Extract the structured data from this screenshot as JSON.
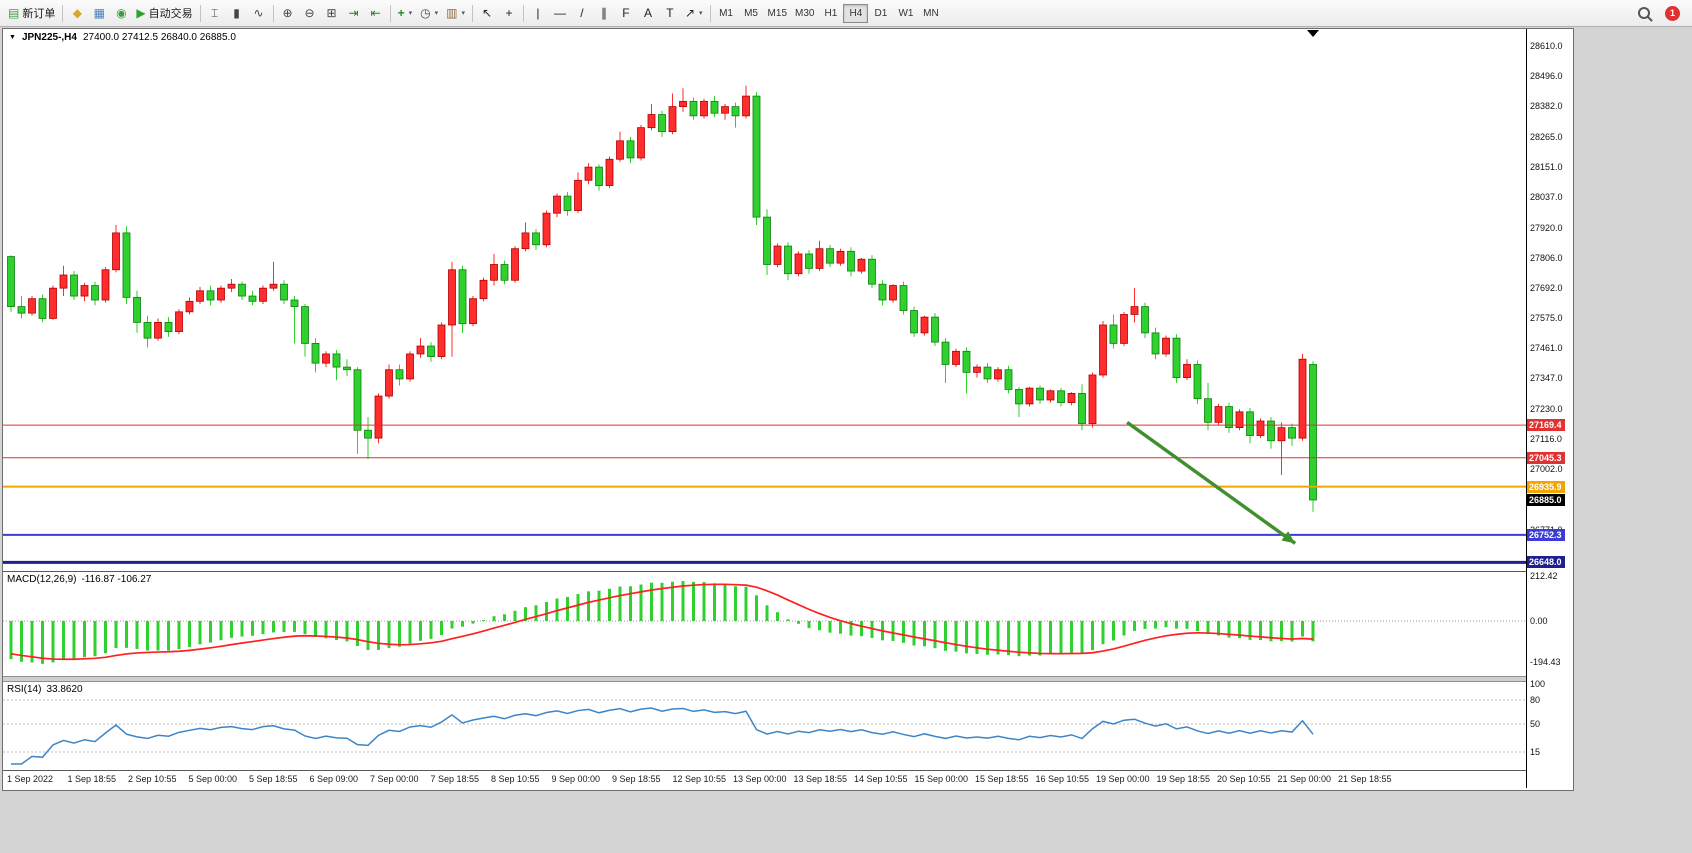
{
  "icons": {
    "caret": "▾",
    "dropdown": "▼"
  },
  "toolbar": {
    "buttons": [
      {
        "type": "button",
        "name": "new-order",
        "glyph": "▤",
        "color": "#3f9c3f",
        "label": "新订单"
      },
      {
        "type": "sep"
      },
      {
        "type": "button",
        "name": "market-watch",
        "glyph": "◆",
        "color": "#d9a62e"
      },
      {
        "type": "button",
        "name": "data-window",
        "glyph": "▦",
        "color": "#4a7ebb"
      },
      {
        "type": "button",
        "name": "navigator",
        "glyph": "◉",
        "color": "#3f9c3f"
      },
      {
        "type": "button",
        "name": "auto-trading",
        "glyph": "▶",
        "color": "#2da52d",
        "label": "自动交易"
      },
      {
        "type": "sep"
      },
      {
        "type": "button",
        "name": "bar-chart",
        "glyph": "⌶",
        "color": "#444444"
      },
      {
        "type": "button",
        "name": "candlestick-chart",
        "glyph": "▮",
        "color": "#444444"
      },
      {
        "type": "button",
        "name": "line-chart",
        "glyph": "∿",
        "color": "#444444"
      },
      {
        "type": "sep"
      },
      {
        "type": "button",
        "name": "zoom-in",
        "glyph": "⊕",
        "color": "#444444"
      },
      {
        "type": "button",
        "name": "zoom-out",
        "glyph": "⊖",
        "color": "#444444"
      },
      {
        "type": "button",
        "name": "tile-windows",
        "glyph": "⊞",
        "color": "#444444"
      },
      {
        "type": "button",
        "name": "auto-scroll",
        "glyph": "⇥",
        "color": "#2a7a2a"
      },
      {
        "type": "button",
        "name": "chart-shift",
        "glyph": "⇤",
        "color": "#2a7a2a"
      },
      {
        "type": "sep"
      },
      {
        "type": "button",
        "name": "indicators",
        "glyph": "+",
        "color": "#1f8f1f",
        "weight": "bold",
        "caret": true
      },
      {
        "type": "button",
        "name": "periods",
        "glyph": "◷",
        "color": "#444444",
        "caret": true
      },
      {
        "type": "button",
        "name": "templates",
        "glyph": "▥",
        "color": "#8a6b3a",
        "caret": true
      },
      {
        "type": "sep"
      },
      {
        "type": "button",
        "name": "cursor",
        "glyph": "↖",
        "color": "#222222"
      },
      {
        "type": "button",
        "name": "crosshair",
        "glyph": "+",
        "color": "#222222"
      },
      {
        "type": "sep"
      },
      {
        "type": "button",
        "name": "vertical-line",
        "glyph": "|",
        "color": "#222222"
      },
      {
        "type": "button",
        "name": "horizontal-line",
        "glyph": "—",
        "color": "#222222"
      },
      {
        "type": "button",
        "name": "trendline",
        "glyph": "/",
        "color": "#222222"
      },
      {
        "type": "button",
        "name": "equidistant-channel",
        "glyph": "∥",
        "color": "#222222"
      },
      {
        "type": "button",
        "name": "fibonacci",
        "glyph": "F",
        "color": "#222222"
      },
      {
        "type": "button",
        "name": "text",
        "glyph": "A",
        "color": "#222222"
      },
      {
        "type": "button",
        "name": "text-label",
        "glyph": "T",
        "color": "#222222"
      },
      {
        "type": "button",
        "name": "arrows",
        "glyph": "↗",
        "color": "#222222",
        "caret": true
      },
      {
        "type": "sep"
      }
    ],
    "timeframes": [
      "M1",
      "M5",
      "M15",
      "M30",
      "H1",
      "H4",
      "D1",
      "W1",
      "MN"
    ],
    "active_timeframe": "H4",
    "notification_count": "1"
  },
  "chart": {
    "symbol_label": "JPN225-,H4",
    "ohlc_label": "27400.0 27412.5 26840.0 26885.0",
    "price_axis": [
      "28610.0",
      "28496.0",
      "28382.0",
      "28265.0",
      "28151.0",
      "28037.0",
      "27920.0",
      "27806.0",
      "27692.0",
      "27575.0",
      "27461.0",
      "27347.0",
      "27230.0",
      "27116.0",
      "27002.0",
      "26771.0"
    ],
    "current_price": {
      "label": "26885.0",
      "price": 26885.0,
      "bg": "#000000"
    },
    "time_axis": [
      "1 Sep 2022",
      "1 Sep 18:55",
      "2 Sep 10:55",
      "5 Sep 00:00",
      "5 Sep 18:55",
      "6 Sep 09:00",
      "7 Sep 00:00",
      "7 Sep 18:55",
      "8 Sep 10:55",
      "9 Sep 00:00",
      "9 Sep 18:55",
      "12 Sep 10:55",
      "13 Sep 00:00",
      "13 Sep 18:55",
      "14 Sep 10:55",
      "15 Sep 00:00",
      "15 Sep 18:55",
      "16 Sep 10:55",
      "19 Sep 00:00",
      "19 Sep 18:55",
      "20 Sep 10:55",
      "21 Sep 00:00",
      "21 Sep 18:55"
    ]
  },
  "macd": {
    "name_label": "MACD(12,26,9)",
    "values_label": "-116.87 -106.27",
    "axis": [
      "212.42",
      "0.00",
      "-194.43"
    ],
    "axis_values": [
      212.42,
      0,
      -194.43
    ]
  },
  "rsi": {
    "name_label": "RSI(14)",
    "value_label": "33.8620",
    "axis": [
      "100",
      "80",
      "50",
      "15"
    ],
    "axis_values": [
      100,
      80,
      50,
      15
    ],
    "levels": [
      80,
      50,
      15
    ]
  },
  "colors": {
    "bull": "#ff2d2d",
    "bull_edge": "#b30000",
    "bear": "#2ed12e",
    "bear_edge": "#0f7e0f",
    "macd_hist": "#2ed12e",
    "macd_signal": "#ff2020",
    "rsi_line": "#3e85c6",
    "arrow": "#3f8f2f",
    "level_red": "#e23131",
    "level_orange": "#f0a500",
    "level_blue": "#3b3bd6",
    "level_navy": "#1f1f8f"
  },
  "chart_data": {
    "type": "candlestick",
    "symbol": "JPN225-",
    "timeframe": "H4",
    "ohlc_current": {
      "open": 27400.0,
      "high": 27412.5,
      "low": 26840.0,
      "close": 26885.0
    },
    "price_view_range": [
      26615,
      28675
    ],
    "candles": [
      [
        27810,
        27815,
        27600,
        27620
      ],
      [
        27620,
        27660,
        27575,
        27595
      ],
      [
        27595,
        27660,
        27585,
        27650
      ],
      [
        27650,
        27665,
        27560,
        27575
      ],
      [
        27575,
        27700,
        27570,
        27690
      ],
      [
        27690,
        27775,
        27660,
        27740
      ],
      [
        27740,
        27755,
        27645,
        27660
      ],
      [
        27660,
        27710,
        27640,
        27700
      ],
      [
        27700,
        27715,
        27625,
        27645
      ],
      [
        27645,
        27770,
        27635,
        27760
      ],
      [
        27760,
        27930,
        27750,
        27900
      ],
      [
        27900,
        27925,
        27630,
        27655
      ],
      [
        27655,
        27680,
        27520,
        27560
      ],
      [
        27560,
        27585,
        27465,
        27500
      ],
      [
        27500,
        27575,
        27490,
        27560
      ],
      [
        27560,
        27580,
        27505,
        27525
      ],
      [
        27525,
        27610,
        27515,
        27600
      ],
      [
        27600,
        27655,
        27590,
        27640
      ],
      [
        27640,
        27695,
        27630,
        27680
      ],
      [
        27680,
        27700,
        27625,
        27645
      ],
      [
        27645,
        27700,
        27635,
        27690
      ],
      [
        27690,
        27725,
        27675,
        27705
      ],
      [
        27705,
        27715,
        27645,
        27660
      ],
      [
        27660,
        27680,
        27625,
        27640
      ],
      [
        27640,
        27700,
        27630,
        27690
      ],
      [
        27690,
        27790,
        27680,
        27705
      ],
      [
        27705,
        27720,
        27630,
        27645
      ],
      [
        27645,
        27660,
        27480,
        27620
      ],
      [
        27620,
        27630,
        27430,
        27480
      ],
      [
        27480,
        27500,
        27370,
        27405
      ],
      [
        27405,
        27450,
        27390,
        27440
      ],
      [
        27440,
        27455,
        27340,
        27390
      ],
      [
        27390,
        27420,
        27355,
        27380
      ],
      [
        27380,
        27390,
        27060,
        27150
      ],
      [
        27150,
        27200,
        27040,
        27120
      ],
      [
        27120,
        27290,
        27100,
        27280
      ],
      [
        27280,
        27400,
        27270,
        27380
      ],
      [
        27380,
        27400,
        27320,
        27345
      ],
      [
        27345,
        27450,
        27335,
        27440
      ],
      [
        27440,
        27500,
        27425,
        27470
      ],
      [
        27470,
        27485,
        27410,
        27430
      ],
      [
        27430,
        27560,
        27420,
        27550
      ],
      [
        27550,
        27790,
        27430,
        27760
      ],
      [
        27760,
        27775,
        27520,
        27555
      ],
      [
        27555,
        27660,
        27545,
        27650
      ],
      [
        27650,
        27730,
        27640,
        27720
      ],
      [
        27720,
        27820,
        27700,
        27780
      ],
      [
        27780,
        27795,
        27705,
        27720
      ],
      [
        27720,
        27850,
        27710,
        27840
      ],
      [
        27840,
        27940,
        27830,
        27900
      ],
      [
        27900,
        27915,
        27835,
        27855
      ],
      [
        27855,
        27985,
        27845,
        27975
      ],
      [
        27975,
        28050,
        27960,
        28040
      ],
      [
        28040,
        28055,
        27965,
        27985
      ],
      [
        27985,
        28130,
        27975,
        28100
      ],
      [
        28100,
        28165,
        28085,
        28150
      ],
      [
        28150,
        28160,
        28060,
        28080
      ],
      [
        28080,
        28190,
        28070,
        28180
      ],
      [
        28180,
        28285,
        28170,
        28250
      ],
      [
        28250,
        28265,
        28165,
        28185
      ],
      [
        28185,
        28310,
        28175,
        28300
      ],
      [
        28300,
        28390,
        28290,
        28350
      ],
      [
        28350,
        28365,
        28265,
        28285
      ],
      [
        28285,
        28430,
        28275,
        28380
      ],
      [
        28380,
        28450,
        28360,
        28400
      ],
      [
        28400,
        28415,
        28330,
        28345
      ],
      [
        28345,
        28410,
        28335,
        28400
      ],
      [
        28400,
        28420,
        28340,
        28355
      ],
      [
        28355,
        28390,
        28330,
        28380
      ],
      [
        28380,
        28395,
        28300,
        28345
      ],
      [
        28345,
        28460,
        28335,
        28420
      ],
      [
        28420,
        28435,
        27930,
        27960
      ],
      [
        27960,
        27990,
        27740,
        27780
      ],
      [
        27780,
        27860,
        27770,
        27850
      ],
      [
        27850,
        27865,
        27720,
        27745
      ],
      [
        27745,
        27830,
        27735,
        27820
      ],
      [
        27820,
        27835,
        27745,
        27765
      ],
      [
        27765,
        27870,
        27755,
        27840
      ],
      [
        27840,
        27855,
        27770,
        27785
      ],
      [
        27785,
        27840,
        27775,
        27830
      ],
      [
        27830,
        27845,
        27735,
        27755
      ],
      [
        27755,
        27805,
        27745,
        27800
      ],
      [
        27800,
        27815,
        27690,
        27705
      ],
      [
        27705,
        27720,
        27625,
        27645
      ],
      [
        27645,
        27705,
        27635,
        27700
      ],
      [
        27700,
        27715,
        27590,
        27605
      ],
      [
        27605,
        27620,
        27505,
        27520
      ],
      [
        27520,
        27585,
        27510,
        27580
      ],
      [
        27580,
        27595,
        27470,
        27485
      ],
      [
        27485,
        27500,
        27330,
        27400
      ],
      [
        27400,
        27460,
        27390,
        27450
      ],
      [
        27450,
        27465,
        27290,
        27370
      ],
      [
        27370,
        27400,
        27350,
        27390
      ],
      [
        27390,
        27405,
        27330,
        27345
      ],
      [
        27345,
        27390,
        27335,
        27380
      ],
      [
        27380,
        27395,
        27290,
        27305
      ],
      [
        27305,
        27315,
        27200,
        27250
      ],
      [
        27250,
        27315,
        27240,
        27310
      ],
      [
        27310,
        27320,
        27250,
        27265
      ],
      [
        27265,
        27305,
        27255,
        27300
      ],
      [
        27300,
        27310,
        27240,
        27255
      ],
      [
        27255,
        27295,
        27245,
        27290
      ],
      [
        27290,
        27325,
        27150,
        27175
      ],
      [
        27175,
        27370,
        27160,
        27360
      ],
      [
        27360,
        27565,
        27350,
        27550
      ],
      [
        27550,
        27590,
        27460,
        27480
      ],
      [
        27480,
        27600,
        27470,
        27590
      ],
      [
        27590,
        27690,
        27560,
        27620
      ],
      [
        27620,
        27635,
        27500,
        27520
      ],
      [
        27520,
        27540,
        27420,
        27440
      ],
      [
        27440,
        27510,
        27430,
        27500
      ],
      [
        27500,
        27515,
        27330,
        27350
      ],
      [
        27350,
        27420,
        27340,
        27400
      ],
      [
        27400,
        27415,
        27250,
        27270
      ],
      [
        27270,
        27330,
        27150,
        27180
      ],
      [
        27180,
        27250,
        27170,
        27240
      ],
      [
        27240,
        27255,
        27140,
        27160
      ],
      [
        27160,
        27230,
        27150,
        27220
      ],
      [
        27220,
        27235,
        27100,
        27130
      ],
      [
        27130,
        27195,
        27120,
        27185
      ],
      [
        27185,
        27200,
        27080,
        27110
      ],
      [
        27110,
        27180,
        26980,
        27160
      ],
      [
        27160,
        27175,
        27090,
        27120
      ],
      [
        27120,
        27440,
        27110,
        27420
      ],
      [
        27400,
        27412.5,
        26840,
        26885
      ]
    ],
    "levels": [
      {
        "price": 27169.4,
        "label": "27169.4",
        "color": "#e23131",
        "width": 1
      },
      {
        "price": 27045.3,
        "label": "27045.3",
        "color": "#e23131",
        "width": 1
      },
      {
        "price": 26935.9,
        "label": "26935.9",
        "color": "#f0a500",
        "width": 2
      },
      {
        "price": 26752.3,
        "label": "26752.3",
        "color": "#3b3bd6",
        "width": 2
      },
      {
        "price": 26648.0,
        "label": "26648.0",
        "color": "#1f1f8f",
        "width": 3
      }
    ],
    "arrow": {
      "from_bar": 106.3,
      "from_price": 27180,
      "to_bar": 122.3,
      "to_price": 26720
    },
    "indicators": [
      {
        "name": "MACD",
        "params": [
          12,
          26,
          9
        ],
        "current": [
          -116.87,
          -106.27
        ]
      },
      {
        "name": "RSI",
        "params": [
          14
        ],
        "current": 33.862
      }
    ]
  }
}
